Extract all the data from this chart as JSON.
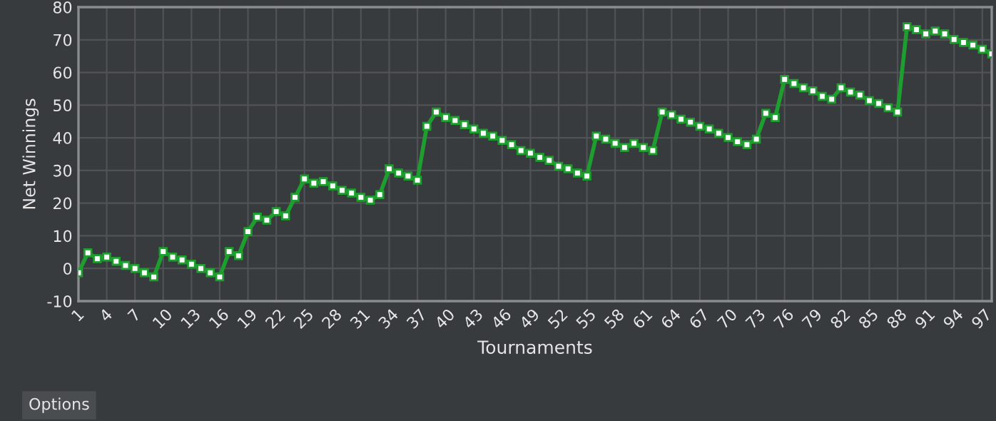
{
  "chart_data": {
    "type": "line",
    "xlabel": "Tournaments",
    "ylabel": "Net Winnings",
    "x": [
      1,
      2,
      3,
      4,
      5,
      6,
      7,
      8,
      9,
      10,
      11,
      12,
      13,
      14,
      15,
      16,
      17,
      18,
      19,
      20,
      21,
      22,
      23,
      24,
      25,
      26,
      27,
      28,
      29,
      30,
      31,
      32,
      33,
      34,
      35,
      36,
      37,
      38,
      39,
      40,
      41,
      42,
      43,
      44,
      45,
      46,
      47,
      48,
      49,
      50,
      51,
      52,
      53,
      54,
      55,
      56,
      57,
      58,
      59,
      60,
      61,
      62,
      63,
      64,
      65,
      66,
      67,
      68,
      69,
      70,
      71,
      72,
      73,
      74,
      75,
      76,
      77,
      78,
      79,
      80,
      81,
      82,
      83,
      84,
      85,
      86,
      87,
      88,
      89,
      90,
      91,
      92,
      93,
      94,
      95,
      96,
      97,
      98
    ],
    "series": [
      {
        "color": "#1e9e2e",
        "values": [
          -1.3,
          4.8,
          3,
          3.5,
          2.2,
          0.9,
          0,
          -1.3,
          -2.6,
          5.2,
          3.5,
          2.6,
          1.3,
          0,
          -1.3,
          -2.6,
          5.2,
          3.9,
          11.3,
          15.7,
          14.8,
          17.4,
          16.1,
          21.8,
          27.4,
          26.1,
          26.6,
          25.3,
          23.9,
          23.1,
          21.8,
          20.9,
          22.6,
          30.5,
          29.2,
          28.3,
          27,
          43.5,
          47.9,
          46.2,
          45.3,
          44,
          42.7,
          41.4,
          40.5,
          39.2,
          37.9,
          36.1,
          35.3,
          34,
          33.1,
          31.3,
          30.5,
          29.2,
          28.3,
          40.5,
          39.6,
          38.3,
          37,
          38.3,
          37,
          36.1,
          47.9,
          47,
          45.7,
          44.8,
          43.5,
          42.7,
          41.4,
          40.1,
          38.8,
          37.9,
          39.6,
          47.5,
          46.2,
          57.9,
          56.6,
          55.3,
          54.4,
          52.7,
          51.8,
          55.3,
          54,
          53.1,
          51.4,
          50.5,
          49.2,
          47.9,
          74,
          73.1,
          71.8,
          72.7,
          71.8,
          70.1,
          69.2,
          68.4,
          67.1,
          65.7
        ]
      }
    ],
    "xlim": [
      1,
      98
    ],
    "xticks": [
      1,
      4,
      7,
      10,
      13,
      16,
      19,
      22,
      25,
      28,
      31,
      34,
      37,
      40,
      43,
      46,
      49,
      52,
      55,
      58,
      61,
      64,
      67,
      70,
      73,
      76,
      79,
      82,
      85,
      88,
      91,
      94,
      97
    ],
    "ylim": [
      -10,
      80
    ],
    "yticks": [
      -10,
      0,
      10,
      20,
      30,
      40,
      50,
      60,
      70,
      80
    ],
    "grid": true,
    "marker": "square",
    "line_style": "solid",
    "annotations": [
      "Options"
    ]
  }
}
